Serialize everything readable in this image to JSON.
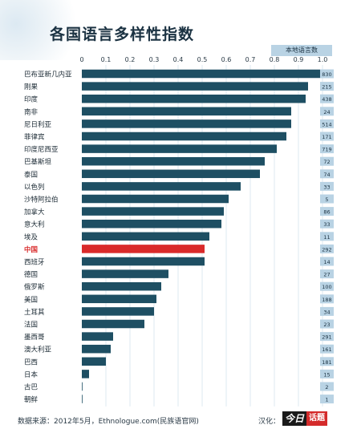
{
  "title": "各国语言多样性指数",
  "legend_tab": "本地语言数",
  "footer": {
    "source": "数据来源：2012年5月，Ethnologue.com(民族语官网)",
    "credit": "汉化：",
    "logo_part1": "今日",
    "logo_part2": "话题"
  },
  "colors": {
    "bar": "#1e4f63",
    "highlight": "#d92a2a",
    "count_box": "#b9d3e4",
    "grid": "#c7dbe8",
    "highlight_label": "#d92a2a"
  },
  "chart_data": {
    "type": "bar",
    "orientation": "horizontal",
    "title": "各国语言多样性指数",
    "xlim": [
      0,
      1.0
    ],
    "xticks": [
      "0",
      "0.1",
      "0.2",
      "0.3",
      "0.4",
      "0.5",
      "0.6",
      "0.7",
      "0.8",
      "0.9",
      "1.0"
    ],
    "grid": true,
    "categories": [
      "巴布亚新几内亚",
      "刚果",
      "印度",
      "南非",
      "尼日利亚",
      "菲律宾",
      "印度尼西亚",
      "巴基斯坦",
      "泰国",
      "以色列",
      "沙特阿拉伯",
      "加拿大",
      "意大利",
      "埃及",
      "中国",
      "西班牙",
      "德国",
      "俄罗斯",
      "美国",
      "土耳其",
      "法国",
      "墨西哥",
      "澳大利亚",
      "巴西",
      "日本",
      "古巴",
      "朝鲜"
    ],
    "values": [
      0.99,
      0.94,
      0.93,
      0.87,
      0.87,
      0.85,
      0.81,
      0.76,
      0.74,
      0.66,
      0.61,
      0.59,
      0.58,
      0.53,
      0.51,
      0.51,
      0.36,
      0.33,
      0.31,
      0.3,
      0.26,
      0.13,
      0.12,
      0.1,
      0.03,
      0.0,
      0.0
    ],
    "local_language_counts": [
      "830",
      "215",
      "438",
      "24",
      "514",
      "171",
      "719",
      "72",
      "74",
      "33",
      "5",
      "86",
      "33",
      "11",
      "292",
      "14",
      "27",
      "100",
      "188",
      "34",
      "23",
      "291",
      "161",
      "181",
      "15",
      "2",
      "1"
    ],
    "highlight": "中国"
  }
}
